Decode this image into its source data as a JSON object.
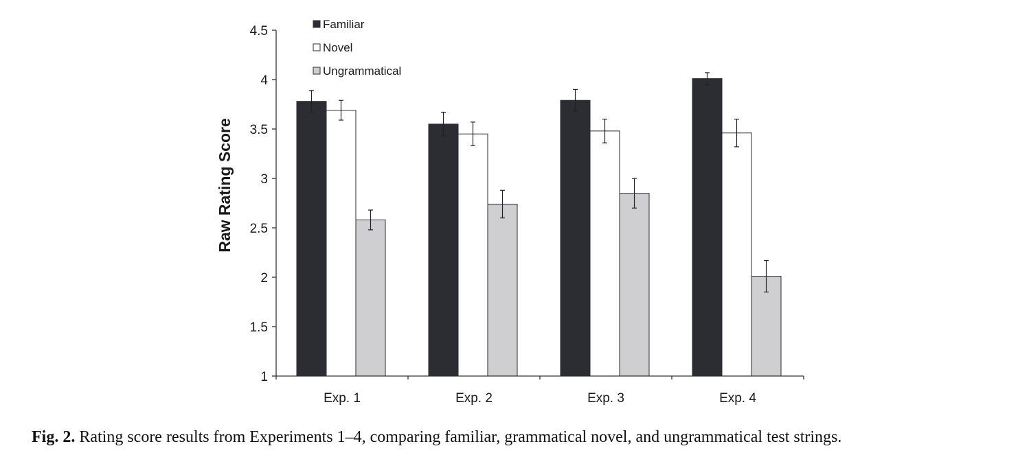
{
  "chart_data": {
    "type": "bar",
    "title": "",
    "xlabel": "",
    "ylabel": "Raw Rating Score",
    "ylim": [
      1,
      4.5
    ],
    "yticks": [
      "1",
      "1.5",
      "2",
      "2.5",
      "3",
      "3.5",
      "4",
      "4.5"
    ],
    "categories": [
      "Exp. 1",
      "Exp. 2",
      "Exp. 3",
      "Exp. 4"
    ],
    "series": [
      {
        "name": "Familiar",
        "color": "#2b2d33",
        "values": [
          3.78,
          3.55,
          3.79,
          4.01
        ],
        "errors": [
          0.11,
          0.12,
          0.11,
          0.06
        ]
      },
      {
        "name": "Novel",
        "color": "#ffffff",
        "values": [
          3.69,
          3.45,
          3.48,
          3.46
        ],
        "errors": [
          0.1,
          0.12,
          0.12,
          0.14
        ]
      },
      {
        "name": "Ungrammatical",
        "color": "#cfcfd1",
        "values": [
          2.58,
          2.74,
          2.85,
          2.01
        ],
        "errors": [
          0.1,
          0.14,
          0.15,
          0.16
        ]
      }
    ],
    "legend_position": "top-left",
    "grid": false
  },
  "caption": {
    "label": "Fig. 2.",
    "text": " Rating score results from Experiments 1–4, comparing familiar, grammatical novel, and ungrammatical test strings."
  }
}
